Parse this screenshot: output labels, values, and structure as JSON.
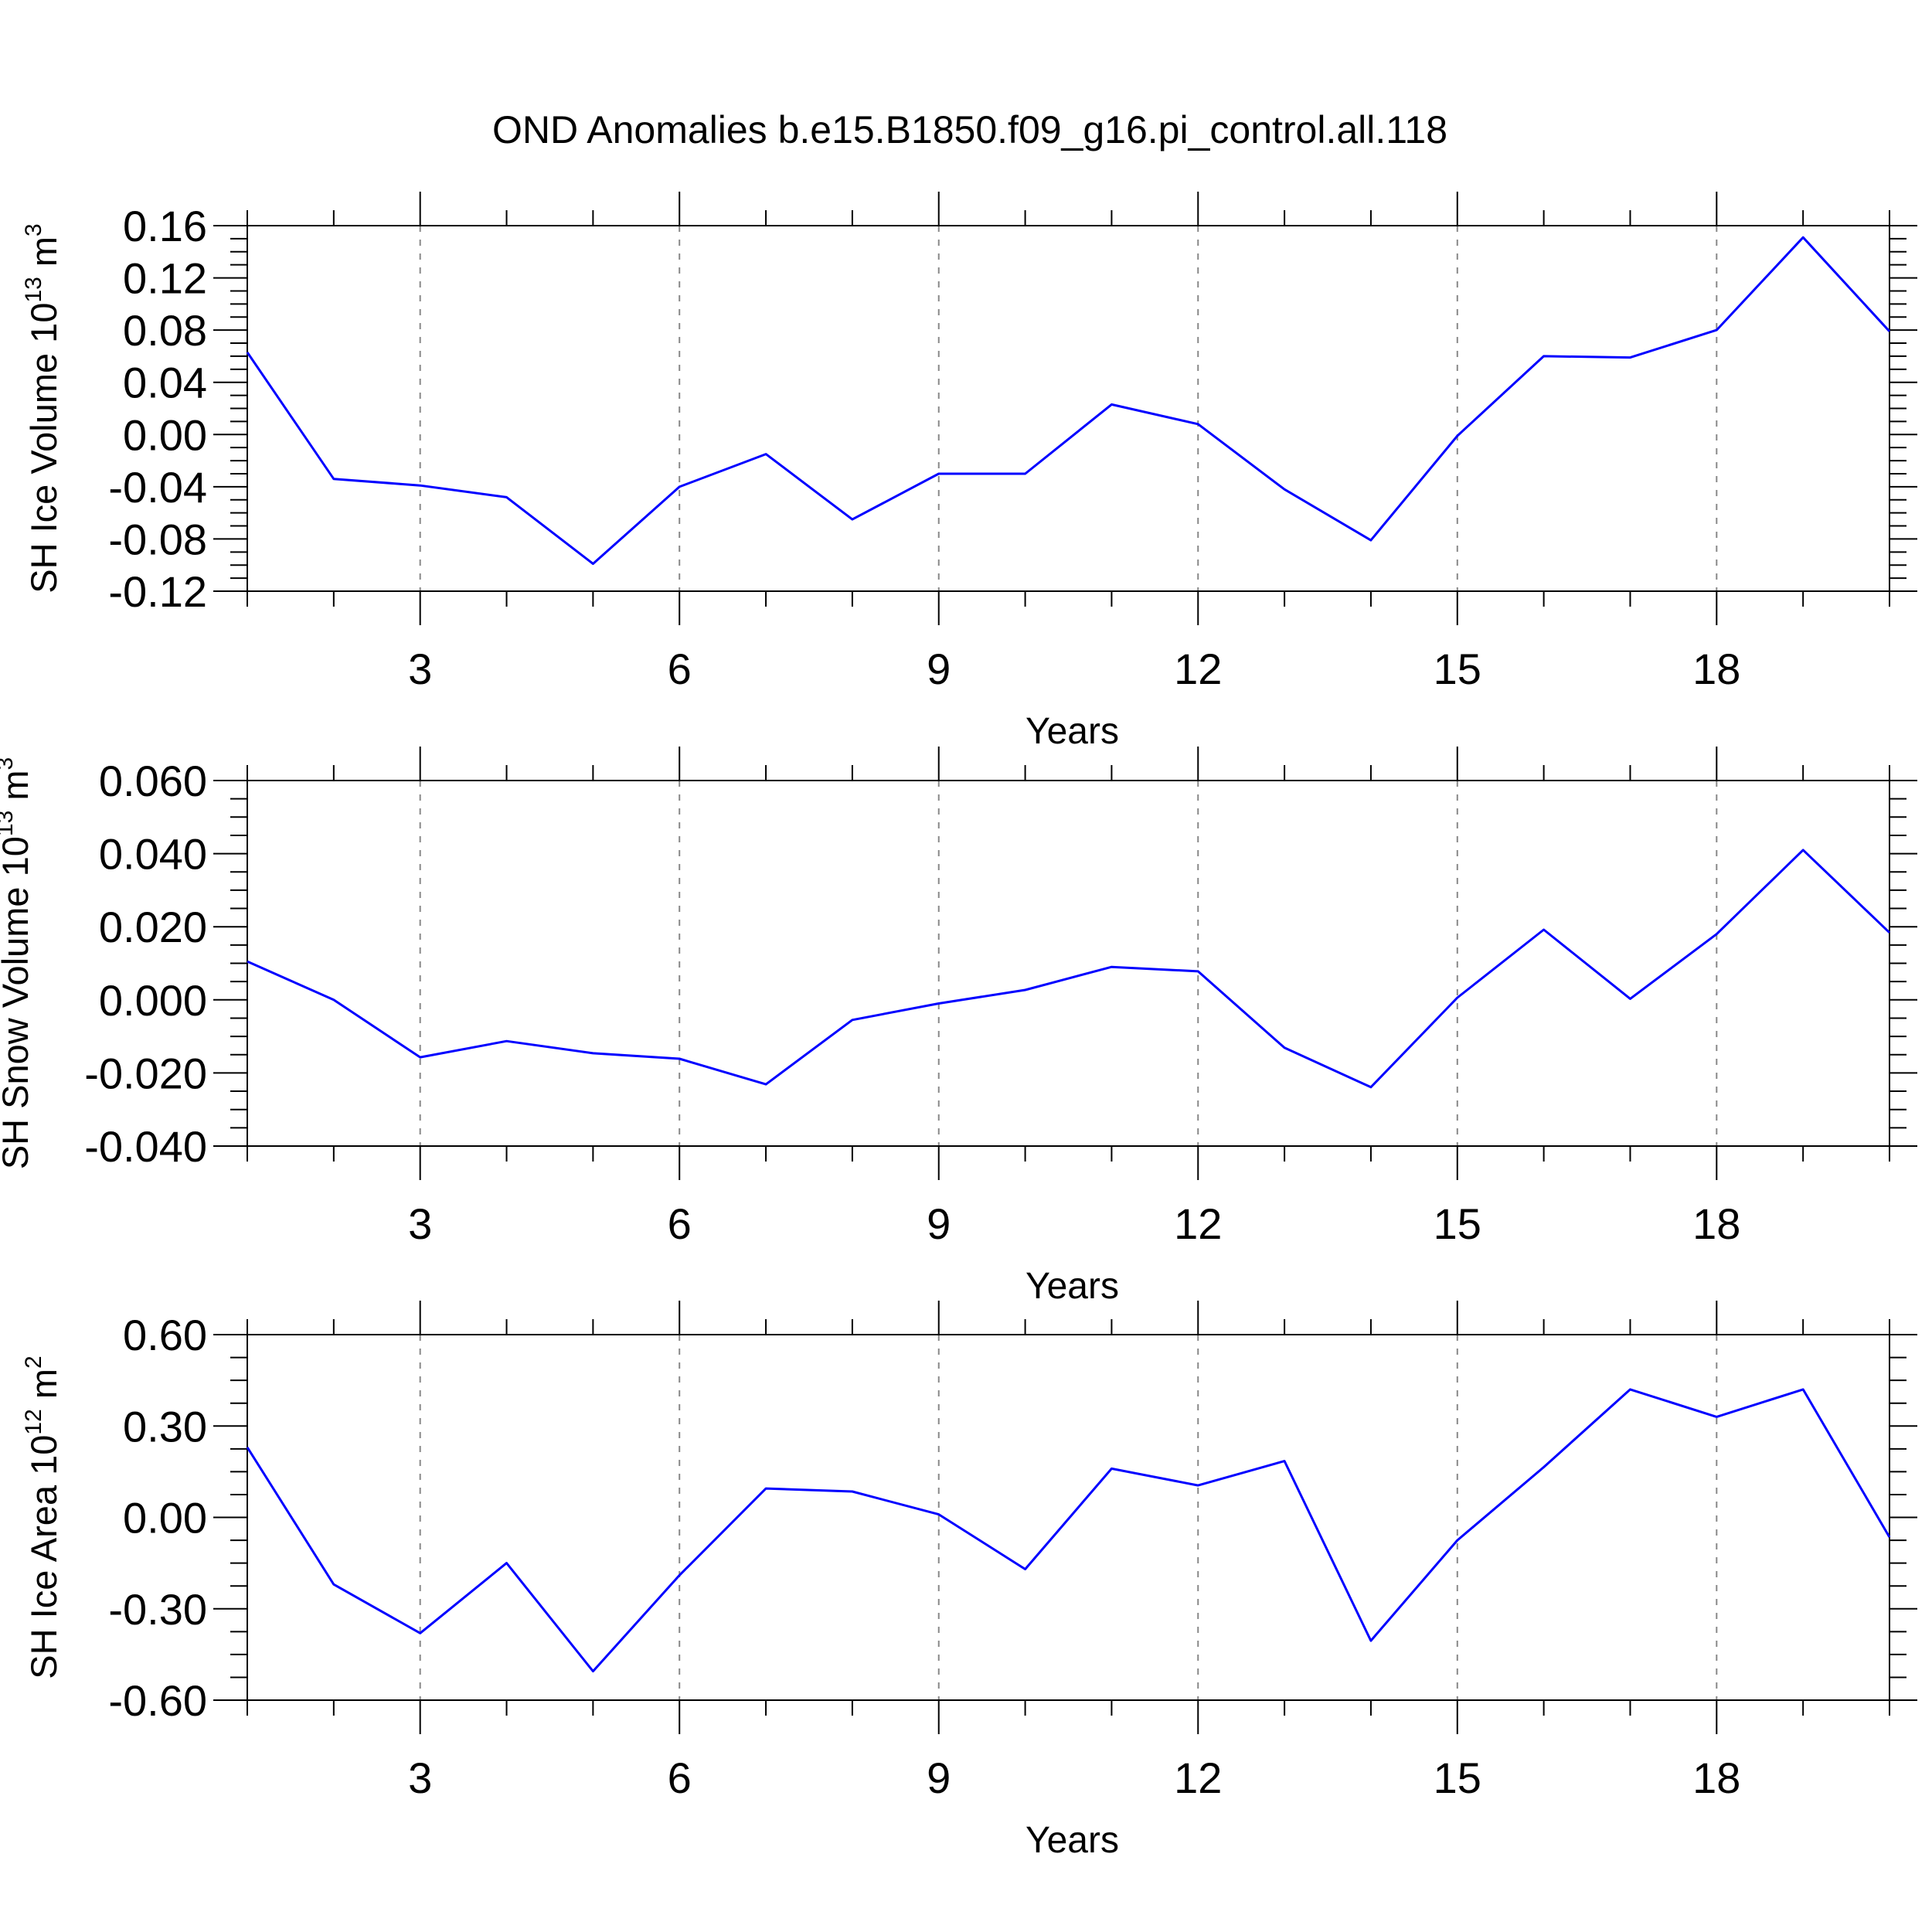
{
  "figure": {
    "title": "OND Anomalies b.e15.B1850.f09_g16.pi_control.all.118"
  },
  "chart_data": [
    {
      "type": "line",
      "ylabel": {
        "text": "SH Ice Volume 10",
        "exp": "13",
        "unit": " m",
        "unit_exp": "3"
      },
      "xlabel": "Years",
      "xlim": [
        1,
        20
      ],
      "xticks": [
        3,
        6,
        9,
        12,
        15,
        18
      ],
      "ylim": [
        -0.12,
        0.16
      ],
      "yticks": [
        -0.12,
        -0.08,
        -0.04,
        0.0,
        0.04,
        0.08,
        0.12,
        0.16
      ],
      "ytick_labels": [
        "-0.12",
        "-0.08",
        "-0.04",
        "0.00",
        "0.04",
        "0.08",
        "0.12",
        "0.16"
      ],
      "grid": "vertical dashed at major x ticks",
      "color": "#0000ff",
      "x": [
        1,
        2,
        3,
        4,
        5,
        6,
        7,
        8,
        9,
        10,
        11,
        12,
        13,
        14,
        15,
        16,
        17,
        18,
        19,
        20
      ],
      "values": [
        0.063,
        -0.034,
        -0.039,
        -0.048,
        -0.099,
        -0.04,
        -0.015,
        -0.065,
        -0.03,
        -0.03,
        0.023,
        0.008,
        -0.042,
        -0.081,
        -0.001,
        0.06,
        0.059,
        0.08,
        0.151,
        0.079
      ]
    },
    {
      "type": "line",
      "ylabel": {
        "text": "SH Snow Volume 10",
        "exp": "13",
        "unit": " m",
        "unit_exp": "3"
      },
      "xlabel": "Years",
      "xlim": [
        1,
        20
      ],
      "xticks": [
        3,
        6,
        9,
        12,
        15,
        18
      ],
      "ylim": [
        -0.04,
        0.06
      ],
      "yticks": [
        -0.04,
        -0.02,
        0.0,
        0.02,
        0.04,
        0.06
      ],
      "ytick_labels": [
        "-0.040",
        "-0.020",
        "0.000",
        "0.020",
        "0.040",
        "0.060"
      ],
      "grid": "vertical dashed at major x ticks",
      "color": "#0000ff",
      "x": [
        1,
        2,
        3,
        4,
        5,
        6,
        7,
        8,
        9,
        10,
        11,
        12,
        13,
        14,
        15,
        16,
        17,
        18,
        19,
        20
      ],
      "values": [
        0.0105,
        0.0,
        -0.0157,
        -0.0113,
        -0.0146,
        -0.0161,
        -0.0231,
        -0.0055,
        -0.001,
        0.0027,
        0.009,
        0.0078,
        -0.0131,
        -0.0239,
        0.0006,
        0.0192,
        0.0003,
        0.018,
        0.041,
        0.0184
      ]
    },
    {
      "type": "line",
      "ylabel": {
        "text": "SH Ice Area 10",
        "exp": "12",
        "unit": " m",
        "unit_exp": "2"
      },
      "xlabel": "Years",
      "xlim": [
        1,
        20
      ],
      "xticks": [
        3,
        6,
        9,
        12,
        15,
        18
      ],
      "ylim": [
        -0.6,
        0.6
      ],
      "yticks": [
        -0.6,
        -0.3,
        0.0,
        0.3,
        0.6
      ],
      "ytick_labels": [
        "-0.60",
        "-0.30",
        "0.00",
        "0.30",
        "0.60"
      ],
      "grid": "vertical dashed at major x ticks",
      "color": "#0000ff",
      "x": [
        1,
        2,
        3,
        4,
        5,
        6,
        7,
        8,
        9,
        10,
        11,
        12,
        13,
        14,
        15,
        16,
        17,
        18,
        19,
        20
      ],
      "values": [
        0.23,
        -0.22,
        -0.38,
        -0.15,
        -0.505,
        -0.19,
        0.095,
        0.085,
        0.01,
        -0.17,
        0.16,
        0.105,
        0.185,
        -0.405,
        -0.075,
        0.165,
        0.42,
        0.33,
        0.42,
        -0.065
      ]
    }
  ]
}
